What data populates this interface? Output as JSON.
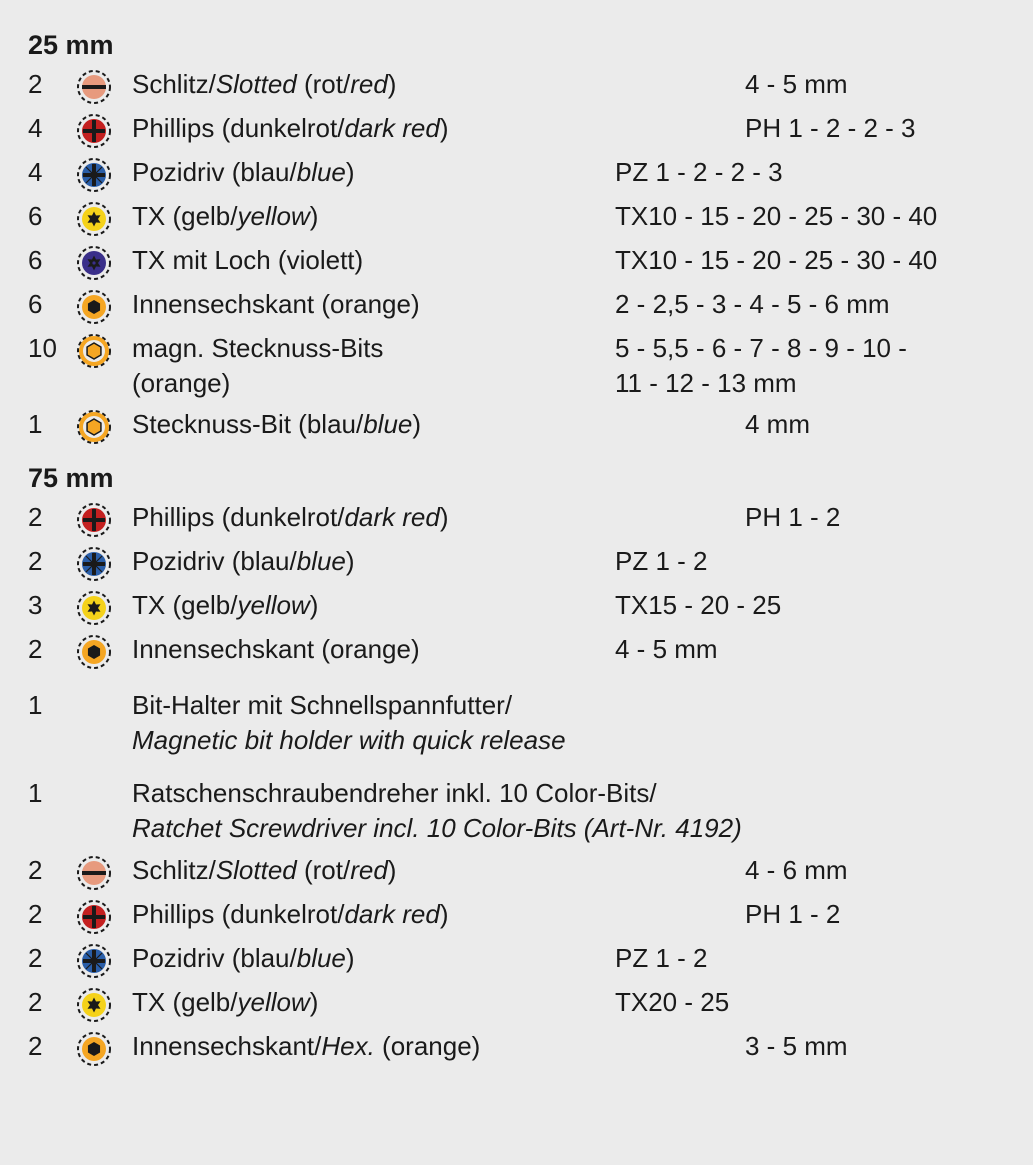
{
  "colors": {
    "background": "#ebebeb",
    "text": "#1a1a1a",
    "dashed_ring": "#1a1a1a",
    "slotted_fill": "#e79a7e",
    "slotted_slot": "#1a1a1a",
    "phillips_fill": "#c42020",
    "phillips_cross": "#1a1a1a",
    "pozidriv_fill": "#2a5ea8",
    "pozidriv_cross": "#1a1a1a",
    "tx_fill": "#f5d21a",
    "tx_star": "#1a1a1a",
    "txhole_fill": "#3a2f8a",
    "txhole_star": "#1a1a1a",
    "hex_fill": "#f5a623",
    "hex_shape": "#1a1a1a",
    "nut_ring": "#f5a623",
    "nut_hex_fill": "#f5a623",
    "nut_hex_stroke": "#1a1a1a",
    "nut_blue_ring": "#2a5ea8"
  },
  "sections": [
    {
      "header": "25 mm",
      "rows": [
        {
          "qty": "2",
          "icon": "slotted",
          "desc_de": "Schlitz/",
          "desc_en": "Slotted",
          "paren_de": " (rot/",
          "paren_en": "red",
          "paren_close": ")",
          "sizes": "4 - 5 mm",
          "sizes_cls": "narrow"
        },
        {
          "qty": "4",
          "icon": "phillips",
          "desc_de": "Phillips (dunkelrot/",
          "desc_en": "dark red",
          "paren_close": ")",
          "sizes": "PH 1 - 2 - 2 - 3",
          "sizes_cls": "narrow"
        },
        {
          "qty": "4",
          "icon": "pozidriv",
          "desc_de": "Pozidriv (blau/",
          "desc_en": "blue",
          "paren_close": ")",
          "sizes": "PZ 1 - 2 - 2 - 3"
        },
        {
          "qty": "6",
          "icon": "tx",
          "desc_de": "TX (gelb/",
          "desc_en": "yellow",
          "paren_close": ")",
          "sizes": "TX10 - 15 - 20 - 25 - 30 - 40"
        },
        {
          "qty": "6",
          "icon": "txhole",
          "desc_de": "TX mit Loch (violett)",
          "sizes": "TX10 - 15 - 20 - 25 - 30 - 40"
        },
        {
          "qty": "6",
          "icon": "hex",
          "desc_de": "Innensechskant (orange)",
          "sizes": "2 - 2,5 - 3 - 4 - 5 - 6 mm"
        },
        {
          "qty": "10",
          "icon": "nut",
          "desc_de": "magn. Stecknuss-Bits",
          "desc_line2": "(orange)",
          "sizes": "5 - 5,5 - 6 - 7 - 8 - 9 - 10 -",
          "sizes_line2": "11 - 12 - 13 mm"
        },
        {
          "qty": "1",
          "icon": "nut",
          "desc_de": "Stecknuss-Bit (blau/",
          "desc_en": "blue",
          "paren_close": ")",
          "sizes": "4 mm",
          "sizes_cls": "narrow"
        }
      ]
    },
    {
      "header": "75 mm",
      "rows": [
        {
          "qty": "2",
          "icon": "phillips",
          "desc_de": "Phillips (dunkelrot/",
          "desc_en": "dark red",
          "paren_close": ")",
          "sizes": "PH 1 - 2",
          "sizes_cls": "narrow"
        },
        {
          "qty": "2",
          "icon": "pozidriv",
          "desc_de": "Pozidriv (blau/",
          "desc_en": "blue",
          "paren_close": ")",
          "sizes": "PZ 1 - 2"
        },
        {
          "qty": "3",
          "icon": "tx",
          "desc_de": "TX (gelb/",
          "desc_en": "yellow",
          "paren_close": ")",
          "sizes": "TX15 - 20 - 25"
        },
        {
          "qty": "2",
          "icon": "hex",
          "desc_de": "Innensechskant (orange)",
          "sizes": "4 - 5 mm"
        }
      ]
    }
  ],
  "extras": [
    {
      "qty": "1",
      "line_de": "Bit-Halter mit Schnellspannfutter/",
      "line_en": "Magnetic bit holder with quick release"
    },
    {
      "qty": "1",
      "line_de": "Ratschenschraubendreher inkl. 10 Color-Bits/",
      "line_en": "Ratchet Screwdriver incl. 10 Color-Bits (Art-Nr. 4192)"
    }
  ],
  "bottom_rows": [
    {
      "qty": "2",
      "icon": "slotted",
      "desc_de": "Schlitz/",
      "desc_en": "Slotted",
      "paren_de": " (rot/",
      "paren_en": "red",
      "paren_close": ")",
      "sizes": "4 - 6 mm",
      "sizes_cls": "narrow"
    },
    {
      "qty": "2",
      "icon": "phillips",
      "desc_de": "Phillips (dunkelrot/",
      "desc_en": "dark red",
      "paren_close": ")",
      "sizes": "PH 1 - 2",
      "sizes_cls": "narrow"
    },
    {
      "qty": "2",
      "icon": "pozidriv",
      "desc_de": "Pozidriv (blau/",
      "desc_en": "blue",
      "paren_close": ")",
      "sizes": "PZ 1 - 2"
    },
    {
      "qty": "2",
      "icon": "tx",
      "desc_de": "TX (gelb/",
      "desc_en": "yellow",
      "paren_close": ")",
      "sizes": "TX20 - 25"
    },
    {
      "qty": "2",
      "icon": "hex",
      "desc_de": "Innensechskant/",
      "desc_en": "Hex.",
      "paren_de": " (orange)",
      "sizes": "3 - 5 mm",
      "sizes_cls": "narrow"
    }
  ]
}
